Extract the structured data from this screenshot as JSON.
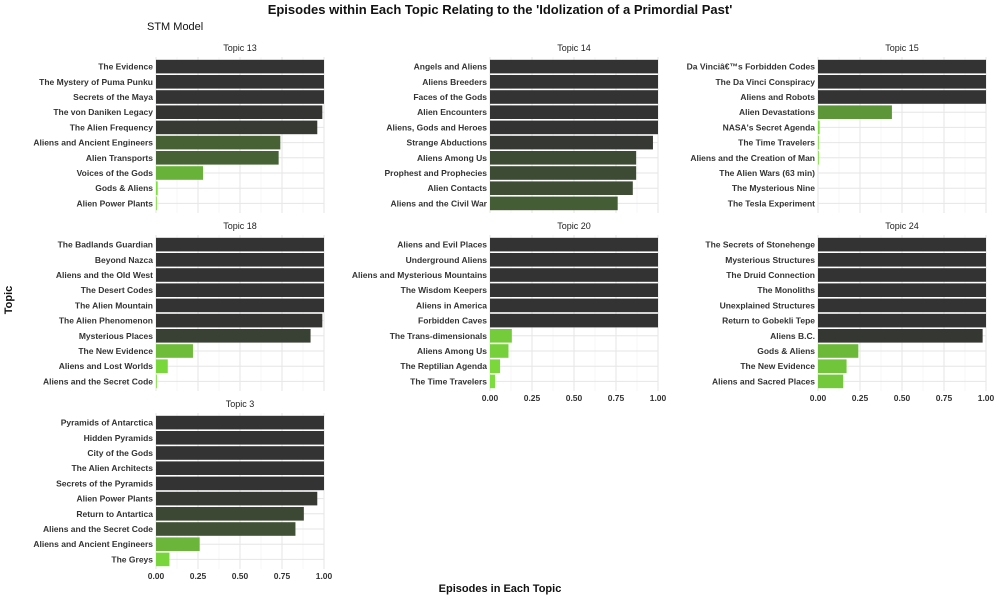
{
  "chart_data": {
    "type": "bar",
    "orientation": "horizontal",
    "title": "Episodes within Each Topic Relating to the 'Idolization of a Primordial Past'",
    "subtitle": "STM Model",
    "xlabel": "Episodes in Each Topic",
    "ylabel": "Topic",
    "xlim": [
      0,
      1
    ],
    "xticks": [
      "0.00",
      "0.25",
      "0.50",
      "0.75",
      "1.00"
    ],
    "grid": true,
    "legend": "none",
    "color_low": "#7ee33c",
    "color_high": "#333333",
    "facets": [
      {
        "name": "Topic 13",
        "categories": [
          "The Evidence",
          "The Mystery of Puma Punku",
          "Secrets of the Maya",
          "The von Daniken Legacy",
          "The Alien Frequency",
          "Aliens and Ancient Engineers",
          "Alien Transports",
          "Voices of the Gods",
          "Gods & Aliens",
          "Alien Power Plants"
        ],
        "values": [
          1.0,
          1.0,
          1.0,
          0.99,
          0.96,
          0.74,
          0.73,
          0.28,
          0.01,
          0.005
        ]
      },
      {
        "name": "Topic 14",
        "categories": [
          "Angels and Aliens",
          "Aliens Breeders",
          "Faces of the Gods",
          "Alien Encounters",
          "Aliens, Gods and Heroes",
          "Strange Abductions",
          "Aliens Among Us",
          "Prophest and Prophecies",
          "Alien Contacts",
          "Aliens and the Civil War"
        ],
        "values": [
          1.0,
          1.0,
          1.0,
          1.0,
          1.0,
          0.97,
          0.87,
          0.87,
          0.85,
          0.76
        ]
      },
      {
        "name": "Topic 15",
        "categories": [
          "Da Vinciâ€™s Forbidden Codes",
          "The Da Vinci Conspiracy",
          "Aliens and Robots",
          "Alien Devastations",
          "NASA's Secret Agenda",
          "The Time Travelers",
          "Aliens and the Creation of Man",
          "The Alien Wars (63 min)",
          "The Mysterious Nine",
          "The Tesla Experiment"
        ],
        "values": [
          1.0,
          1.0,
          1.0,
          0.44,
          0.01,
          0.005,
          0.005,
          0.0,
          0.0,
          0.0
        ]
      },
      {
        "name": "Topic 18",
        "categories": [
          "The Badlands Guardian",
          "Beyond Nazca",
          "Aliens and the Old West",
          "The Desert Codes",
          "The Alien Mountain",
          "The Alien Phenomenon",
          "Mysterious Places",
          "The New Evidence",
          "Aliens and Lost Worlds",
          "Aliens and the Secret Code"
        ],
        "values": [
          1.0,
          1.0,
          1.0,
          1.0,
          1.0,
          0.99,
          0.92,
          0.22,
          0.07,
          0.005
        ]
      },
      {
        "name": "Topic 20",
        "categories": [
          "Aliens and Evil Places",
          "Underground Aliens",
          "Aliens and Mysterious Mountains",
          "The Wisdom Keepers",
          "Aliens in America",
          "Forbidden Caves",
          "The Trans-dimensionals",
          "Aliens Among Us",
          "The Reptilian Agenda",
          "The Time Travelers"
        ],
        "values": [
          1.0,
          1.0,
          1.0,
          1.0,
          1.0,
          1.0,
          0.13,
          0.11,
          0.06,
          0.03
        ]
      },
      {
        "name": "Topic 24",
        "categories": [
          "The Secrets of Stonehenge",
          "Mysterious Structures",
          "The Druid Connection",
          "The Monoliths",
          "Unexplained Structures",
          "Return to Gobekli Tepe",
          "Aliens B.C.",
          "Gods & Aliens",
          "The New Evidence",
          "Aliens and Sacred Places"
        ],
        "values": [
          1.0,
          1.0,
          1.0,
          1.0,
          1.0,
          1.0,
          0.98,
          0.24,
          0.17,
          0.15
        ]
      },
      {
        "name": "Topic 3",
        "categories": [
          "Pyramids of Antarctica",
          "Hidden Pyramids",
          "City of the Gods",
          "The Alien Architects",
          "Secrets of the Pyramids",
          "Alien Power Plants",
          "Return to Antartica",
          "Aliens and the Secret Code",
          "Aliens and Ancient Engineers",
          "The Greys"
        ],
        "values": [
          1.0,
          1.0,
          1.0,
          1.0,
          1.0,
          0.96,
          0.88,
          0.83,
          0.26,
          0.08
        ]
      }
    ]
  }
}
